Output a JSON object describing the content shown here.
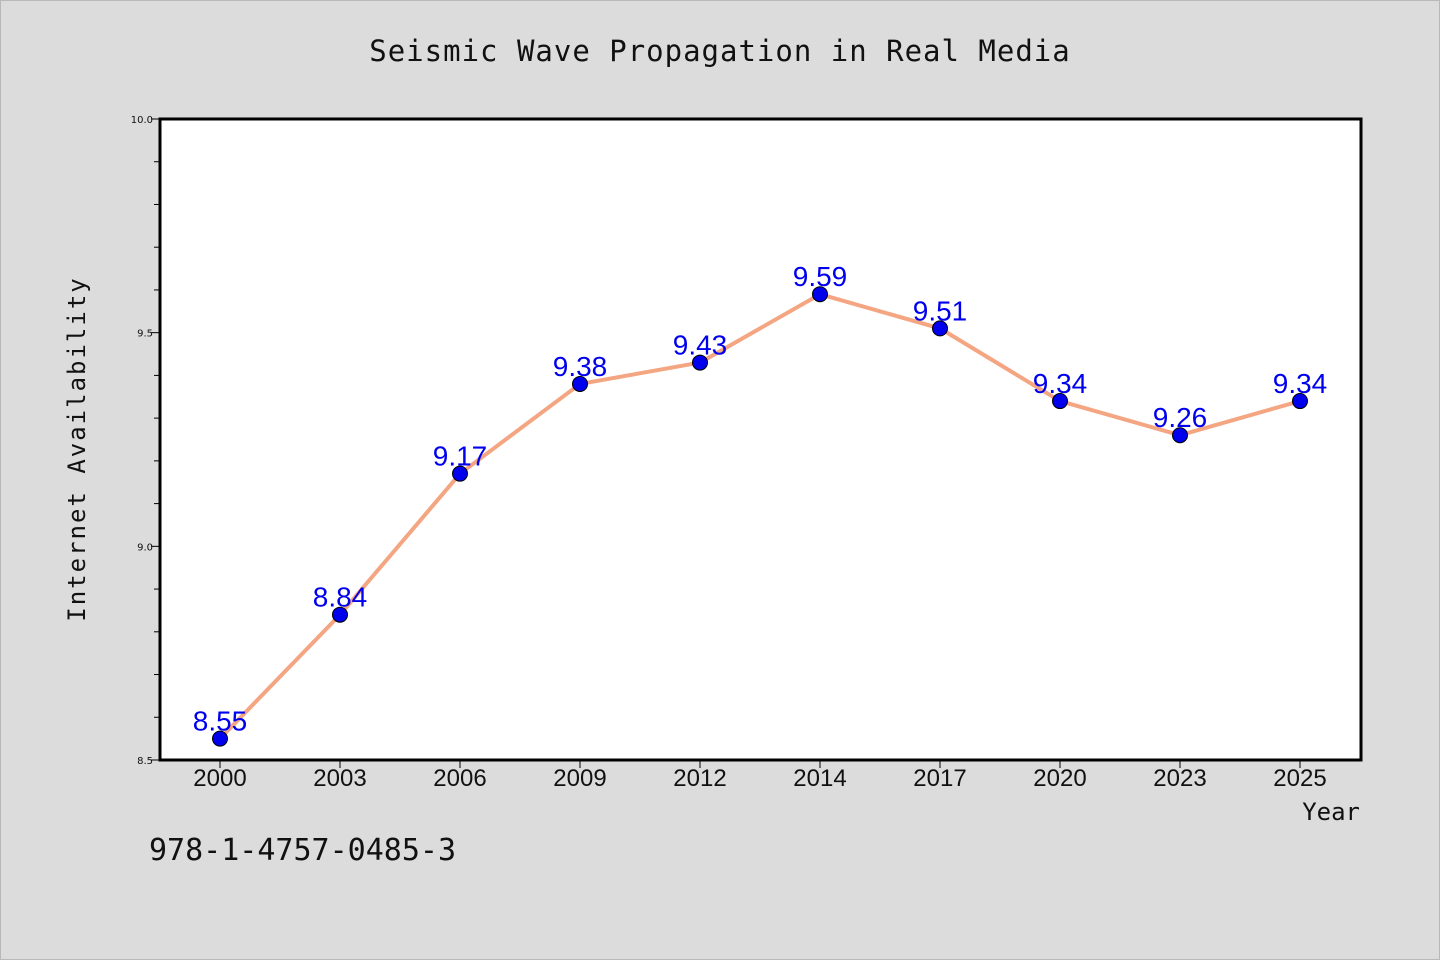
{
  "chart_data": {
    "type": "line",
    "title": "Seismic Wave Propagation in Real Media",
    "xlabel": "Year",
    "ylabel": "Internet Availability",
    "categories": [
      "2000",
      "2003",
      "2006",
      "2009",
      "2012",
      "2014",
      "2017",
      "2020",
      "2023",
      "2025"
    ],
    "values": [
      8.55,
      8.84,
      9.17,
      9.38,
      9.43,
      9.59,
      9.51,
      9.34,
      9.26,
      9.34
    ],
    "data_labels": [
      "8.55",
      "8.84",
      "9.17",
      "9.38",
      "9.43",
      "9.59",
      "9.51",
      "9.34",
      "9.26",
      "9.34"
    ],
    "ylim": [
      8.5,
      10.0
    ],
    "yticks": [
      "8.5",
      "9.0",
      "9.5",
      "10.0"
    ],
    "grid": false,
    "line_color": "#f4a582",
    "marker_color": "#0000ee",
    "label_color": "#0000ee"
  },
  "footer": {
    "isbn": "978-1-4757-0485-3"
  }
}
